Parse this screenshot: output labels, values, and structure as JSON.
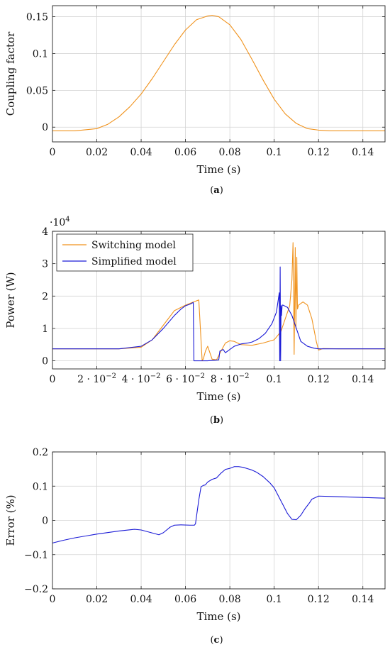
{
  "chart_data": [
    {
      "type": "line",
      "caption": "(a)",
      "xlabel": "Time (s)",
      "ylabel": "Coupling factor",
      "xlim": [
        0,
        0.15
      ],
      "ylim": [
        -0.02,
        0.165
      ],
      "grid": true,
      "xticks": [
        {
          "v": 0,
          "label": "0"
        },
        {
          "v": 0.02,
          "label": "0.02"
        },
        {
          "v": 0.04,
          "label": "0.04"
        },
        {
          "v": 0.06,
          "label": "0.06"
        },
        {
          "v": 0.08,
          "label": "0.08"
        },
        {
          "v": 0.1,
          "label": "0.1"
        },
        {
          "v": 0.12,
          "label": "0.12"
        },
        {
          "v": 0.14,
          "label": "0.14"
        }
      ],
      "yticks": [
        {
          "v": 0,
          "label": "0"
        },
        {
          "v": 0.05,
          "label": "0.05"
        },
        {
          "v": 0.1,
          "label": "0.1"
        },
        {
          "v": 0.15,
          "label": "0.15"
        }
      ],
      "series": [
        {
          "color": "#f0921c",
          "x": [
            0,
            0.01,
            0.02,
            0.025,
            0.03,
            0.035,
            0.04,
            0.045,
            0.05,
            0.055,
            0.06,
            0.065,
            0.07,
            0.072,
            0.075,
            0.08,
            0.085,
            0.09,
            0.095,
            0.1,
            0.105,
            0.11,
            0.115,
            0.12,
            0.125,
            0.13,
            0.14,
            0.15
          ],
          "y": [
            -0.005,
            -0.005,
            -0.002,
            0.004,
            0.014,
            0.028,
            0.045,
            0.066,
            0.089,
            0.112,
            0.132,
            0.146,
            0.151,
            0.152,
            0.15,
            0.139,
            0.119,
            0.092,
            0.064,
            0.038,
            0.018,
            0.005,
            -0.002,
            -0.004,
            -0.005,
            -0.005,
            -0.005,
            -0.005
          ]
        }
      ]
    },
    {
      "type": "line",
      "caption": "(b)",
      "xlabel": "Time (s)",
      "ylabel": "Power (W)",
      "scale_label": "·10",
      "scale_exp": "4",
      "xlim": [
        0,
        0.15
      ],
      "ylim": [
        -0.25,
        4
      ],
      "grid": true,
      "legend_position": "top-left",
      "xticks": [
        {
          "v": 0,
          "label": "0"
        },
        {
          "v": 0.02,
          "label": "2 · 10",
          "exp": "−2"
        },
        {
          "v": 0.04,
          "label": "4 · 10",
          "exp": "−2"
        },
        {
          "v": 0.06,
          "label": "6 · 10",
          "exp": "−2"
        },
        {
          "v": 0.08,
          "label": "8 · 10",
          "exp": "−2"
        },
        {
          "v": 0.1,
          "label": "0.1"
        },
        {
          "v": 0.12,
          "label": "0.12"
        },
        {
          "v": 0.14,
          "label": "0.14"
        }
      ],
      "yticks": [
        {
          "v": 0,
          "label": "0"
        },
        {
          "v": 1,
          "label": "1"
        },
        {
          "v": 2,
          "label": "2"
        },
        {
          "v": 3,
          "label": "3"
        },
        {
          "v": 4,
          "label": "4"
        }
      ],
      "series": [
        {
          "name": "Switching model",
          "color": "#f0921c",
          "x": [
            0,
            0.03,
            0.04,
            0.045,
            0.05,
            0.055,
            0.06,
            0.063,
            0.066,
            0.0675,
            0.068,
            0.069,
            0.07,
            0.072,
            0.074,
            0.076,
            0.078,
            0.08,
            0.082,
            0.085,
            0.09,
            0.095,
            0.1,
            0.103,
            0.105,
            0.107,
            0.108,
            0.1085,
            0.109,
            0.1095,
            0.1098,
            0.1102,
            0.1105,
            0.111,
            0.113,
            0.115,
            0.117,
            0.119,
            0.12,
            0.122,
            0.13,
            0.15
          ],
          "y": [
            0.37,
            0.37,
            0.42,
            0.65,
            1.1,
            1.55,
            1.72,
            1.8,
            1.88,
            0.02,
            0.05,
            0.3,
            0.45,
            0.05,
            0.03,
            0.3,
            0.55,
            0.62,
            0.6,
            0.5,
            0.48,
            0.55,
            0.65,
            0.9,
            1.3,
            1.7,
            2.5,
            3.65,
            0.2,
            3.5,
            1.0,
            3.2,
            1.6,
            1.72,
            1.82,
            1.72,
            1.3,
            0.6,
            0.33,
            0.38,
            0.37,
            0.37
          ]
        },
        {
          "name": "Simplified model",
          "color": "#1a1ad6",
          "x": [
            0,
            0.03,
            0.04,
            0.045,
            0.05,
            0.055,
            0.058,
            0.06,
            0.062,
            0.0635,
            0.0638,
            0.064,
            0.065,
            0.07,
            0.075,
            0.0755,
            0.077,
            0.078,
            0.08,
            0.082,
            0.085,
            0.088,
            0.09,
            0.093,
            0.096,
            0.099,
            0.101,
            0.1023,
            0.1025,
            0.1027,
            0.1029,
            0.1031,
            0.1033,
            0.1036,
            0.104,
            0.106,
            0.108,
            0.11,
            0.112,
            0.115,
            0.118,
            0.12,
            0.13,
            0.15
          ],
          "y": [
            0.37,
            0.37,
            0.45,
            0.65,
            1.0,
            1.4,
            1.6,
            1.7,
            1.75,
            1.8,
            0.0,
            0.0,
            0.0,
            0.0,
            0.03,
            0.3,
            0.35,
            0.25,
            0.35,
            0.45,
            0.52,
            0.55,
            0.58,
            0.68,
            0.85,
            1.15,
            1.5,
            2.1,
            0.0,
            2.9,
            0.0,
            1.7,
            1.4,
            1.72,
            1.72,
            1.65,
            1.4,
            1.0,
            0.6,
            0.45,
            0.39,
            0.37,
            0.37,
            0.37
          ]
        }
      ]
    },
    {
      "type": "line",
      "caption": "(c)",
      "xlabel": "Time (s)",
      "ylabel": "Error (%)",
      "xlim": [
        0,
        0.15
      ],
      "ylim": [
        -0.2,
        0.2
      ],
      "grid": true,
      "xticks": [
        {
          "v": 0,
          "label": "0"
        },
        {
          "v": 0.02,
          "label": "0.02"
        },
        {
          "v": 0.04,
          "label": "0.04"
        },
        {
          "v": 0.06,
          "label": "0.06"
        },
        {
          "v": 0.08,
          "label": "0.08"
        },
        {
          "v": 0.1,
          "label": "0.1"
        },
        {
          "v": 0.12,
          "label": "0.12"
        },
        {
          "v": 0.14,
          "label": "0.14"
        }
      ],
      "yticks": [
        {
          "v": -0.2,
          "label": "−0.2"
        },
        {
          "v": -0.1,
          "label": "−0.1"
        },
        {
          "v": 0,
          "label": "0"
        },
        {
          "v": 0.1,
          "label": "0.1"
        },
        {
          "v": 0.2,
          "label": "0.2"
        }
      ],
      "series": [
        {
          "color": "#1a1ad6",
          "x": [
            0,
            0.005,
            0.01,
            0.02,
            0.03,
            0.037,
            0.04,
            0.044,
            0.048,
            0.05,
            0.053,
            0.055,
            0.058,
            0.062,
            0.064,
            0.0645,
            0.066,
            0.067,
            0.068,
            0.069,
            0.07,
            0.072,
            0.074,
            0.076,
            0.078,
            0.08,
            0.082,
            0.084,
            0.086,
            0.088,
            0.09,
            0.092,
            0.095,
            0.098,
            0.1,
            0.102,
            0.104,
            0.106,
            0.108,
            0.11,
            0.112,
            0.114,
            0.116,
            0.117,
            0.12,
            0.13,
            0.14,
            0.15
          ],
          "y": [
            -0.066,
            -0.058,
            -0.051,
            -0.04,
            -0.031,
            -0.026,
            -0.028,
            -0.035,
            -0.042,
            -0.036,
            -0.02,
            -0.014,
            -0.013,
            -0.014,
            -0.014,
            -0.01,
            0.06,
            0.098,
            0.102,
            0.104,
            0.112,
            0.12,
            0.124,
            0.138,
            0.149,
            0.152,
            0.157,
            0.157,
            0.155,
            0.151,
            0.147,
            0.141,
            0.128,
            0.11,
            0.095,
            0.07,
            0.045,
            0.02,
            0.003,
            0.002,
            0.015,
            0.035,
            0.052,
            0.062,
            0.071,
            0.069,
            0.067,
            0.065
          ]
        }
      ]
    }
  ]
}
